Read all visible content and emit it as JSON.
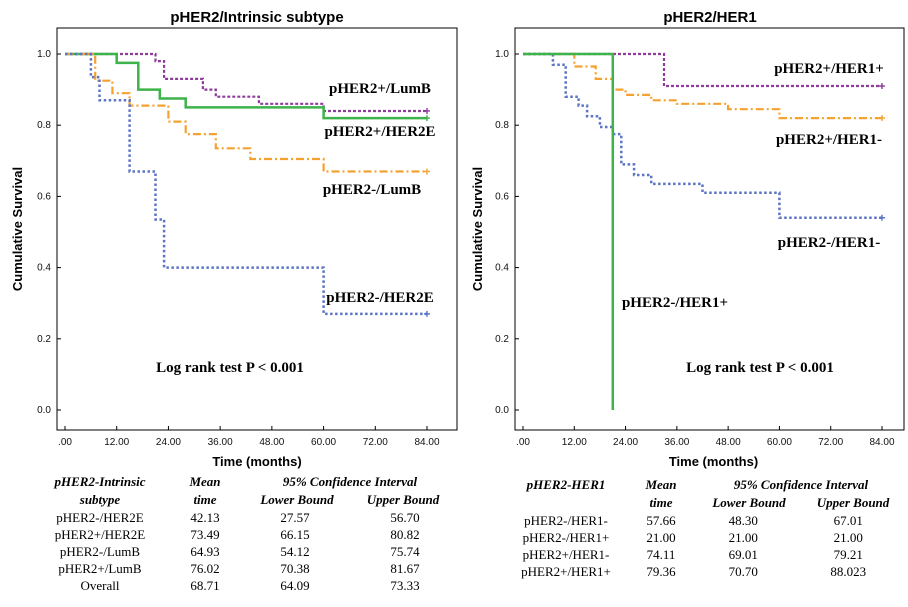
{
  "chart_data": [
    {
      "type": "line",
      "title": "pHER2/Intrinsic subtype",
      "xlabel": "Time (months)",
      "ylabel": "Cumulative Survival",
      "xlim": [
        0,
        84
      ],
      "ylim": [
        0,
        1
      ],
      "x_ticks": [
        ".00",
        "12.00",
        "24.00",
        "36.00",
        "48.00",
        "60.00",
        "72.00",
        "84.00"
      ],
      "y_ticks": [
        "0.0",
        "0.2",
        "0.4",
        "0.6",
        "0.8",
        "1.0"
      ],
      "annotation": "Log rank test  P < 0.001",
      "series": [
        {
          "name": "pHER2+/LumB",
          "color": "#8e3b9c",
          "dash": "3,2",
          "width": 2.2,
          "points": [
            [
              0,
              1
            ],
            [
              21,
              1
            ],
            [
              21,
              0.98
            ],
            [
              23,
              0.98
            ],
            [
              23,
              0.93
            ],
            [
              32,
              0.93
            ],
            [
              32,
              0.9
            ],
            [
              35,
              0.9
            ],
            [
              35,
              0.88
            ],
            [
              45,
              0.88
            ],
            [
              45,
              0.86
            ],
            [
              60,
              0.86
            ],
            [
              60,
              0.84
            ],
            [
              84,
              0.84
            ]
          ]
        },
        {
          "name": "pHER2+/HER2E",
          "color": "#3db34a",
          "dash": "",
          "width": 2.5,
          "points": [
            [
              0,
              1
            ],
            [
              12,
              1
            ],
            [
              12,
              0.975
            ],
            [
              17,
              0.975
            ],
            [
              17,
              0.9
            ],
            [
              22,
              0.9
            ],
            [
              22,
              0.875
            ],
            [
              28,
              0.875
            ],
            [
              28,
              0.85
            ],
            [
              60,
              0.85
            ],
            [
              60,
              0.82
            ],
            [
              84,
              0.82
            ]
          ]
        },
        {
          "name": "pHER2-/LumB",
          "color": "#f5a12f",
          "dash": "8,3,2,3",
          "width": 2.2,
          "points": [
            [
              0,
              1
            ],
            [
              7,
              1
            ],
            [
              7,
              0.925
            ],
            [
              11,
              0.925
            ],
            [
              11,
              0.89
            ],
            [
              15,
              0.89
            ],
            [
              15,
              0.855
            ],
            [
              24,
              0.855
            ],
            [
              24,
              0.81
            ],
            [
              28,
              0.81
            ],
            [
              28,
              0.775
            ],
            [
              35,
              0.775
            ],
            [
              35,
              0.735
            ],
            [
              43,
              0.735
            ],
            [
              43,
              0.705
            ],
            [
              60,
              0.705
            ],
            [
              60,
              0.67
            ],
            [
              84,
              0.67
            ]
          ]
        },
        {
          "name": "pHER2-/HER2E",
          "color": "#5b74c5",
          "dash": "2.5,2.5",
          "width": 2.5,
          "points": [
            [
              0,
              1
            ],
            [
              6,
              1
            ],
            [
              6,
              0.935
            ],
            [
              8,
              0.935
            ],
            [
              8,
              0.87
            ],
            [
              15,
              0.87
            ],
            [
              15,
              0.67
            ],
            [
              21,
              0.67
            ],
            [
              21,
              0.535
            ],
            [
              23,
              0.535
            ],
            [
              23,
              0.4
            ],
            [
              60,
              0.4
            ],
            [
              60,
              0.27
            ],
            [
              84,
              0.27
            ]
          ]
        }
      ],
      "series_labels": [
        "pHER2+/LumB",
        "pHER2+/HER2E",
        "pHER2-/LumB",
        "pHER2-/HER2E"
      ],
      "table": {
        "headers": [
          "pHER2-Intrinsic subtype",
          "Mean time",
          "95% Confidence Interval",
          "Lower Bound",
          "Upper Bound"
        ],
        "rows": [
          [
            "pHER2-/HER2E",
            "42.13",
            "27.57",
            "56.70"
          ],
          [
            "pHER2+/HER2E",
            "73.49",
            "66.15",
            "80.82"
          ],
          [
            "pHER2-/LumB",
            "64.93",
            "54.12",
            "75.74"
          ],
          [
            "pHER2+/LumB",
            "76.02",
            "70.38",
            "81.67"
          ],
          [
            "Overall",
            "68.71",
            "64.09",
            "73.33"
          ]
        ]
      }
    },
    {
      "type": "line",
      "title": "pHER2/HER1",
      "xlabel": "Time (months)",
      "ylabel": "Cumulative Survival",
      "xlim": [
        0,
        84
      ],
      "ylim": [
        0,
        1
      ],
      "x_ticks": [
        ".00",
        "12.00",
        "24.00",
        "36.00",
        "48.00",
        "60.00",
        "72.00",
        "84.00"
      ],
      "y_ticks": [
        "0.0",
        "0.2",
        "0.4",
        "0.6",
        "0.8",
        "1.0"
      ],
      "annotation": "Log rank test  P < 0.001",
      "series": [
        {
          "name": "pHER2+/HER1+",
          "color": "#8e3b9c",
          "dash": "3,2",
          "width": 2.2,
          "points": [
            [
              0,
              1
            ],
            [
              33,
              1
            ],
            [
              33,
              0.91
            ],
            [
              84,
              0.91
            ]
          ]
        },
        {
          "name": "pHER2+/HER1-",
          "color": "#f5a12f",
          "dash": "8,3,2,3",
          "width": 2.2,
          "points": [
            [
              0,
              1
            ],
            [
              12,
              1
            ],
            [
              12,
              0.965
            ],
            [
              17,
              0.965
            ],
            [
              17,
              0.93
            ],
            [
              21,
              0.93
            ],
            [
              21,
              0.9
            ],
            [
              24,
              0.9
            ],
            [
              24,
              0.885
            ],
            [
              30,
              0.885
            ],
            [
              30,
              0.87
            ],
            [
              36,
              0.87
            ],
            [
              36,
              0.86
            ],
            [
              48,
              0.86
            ],
            [
              48,
              0.845
            ],
            [
              60,
              0.845
            ],
            [
              60,
              0.82
            ],
            [
              84,
              0.82
            ]
          ]
        },
        {
          "name": "pHER2-/HER1-",
          "color": "#5b74c5",
          "dash": "2.5,2.5",
          "width": 2.5,
          "points": [
            [
              0,
              1
            ],
            [
              7,
              1
            ],
            [
              7,
              0.97
            ],
            [
              10,
              0.97
            ],
            [
              10,
              0.88
            ],
            [
              13,
              0.88
            ],
            [
              13,
              0.855
            ],
            [
              15,
              0.855
            ],
            [
              15,
              0.825
            ],
            [
              18,
              0.825
            ],
            [
              18,
              0.795
            ],
            [
              21,
              0.795
            ],
            [
              21,
              0.775
            ],
            [
              23,
              0.775
            ],
            [
              23,
              0.69
            ],
            [
              26,
              0.69
            ],
            [
              26,
              0.66
            ],
            [
              30,
              0.66
            ],
            [
              30,
              0.635
            ],
            [
              42,
              0.635
            ],
            [
              42,
              0.61
            ],
            [
              60,
              0.61
            ],
            [
              60,
              0.54
            ],
            [
              84,
              0.54
            ]
          ]
        },
        {
          "name": "pHER2-/HER1+",
          "color": "#3db34a",
          "dash": "",
          "width": 2.5,
          "points": [
            [
              0,
              1
            ],
            [
              21,
              1
            ],
            [
              21,
              0
            ]
          ]
        }
      ],
      "series_labels": [
        "pHER2+/HER1+",
        "pHER2+/HER1-",
        "pHER2-/HER1-",
        "pHER2-/HER1+"
      ],
      "table": {
        "headers": [
          "pHER2-HER1",
          "Mean time",
          "95% Confidence Interval",
          "Lower Bound",
          "Upper Bound"
        ],
        "rows": [
          [
            "pHER2-/HER1-",
            "57.66",
            "48.30",
            "67.01"
          ],
          [
            "pHER2-/HER1+",
            "21.00",
            "21.00",
            "21.00"
          ],
          [
            "pHER2+/HER1-",
            "74.11",
            "69.01",
            "79.21"
          ],
          [
            "pHER2+/HER1+",
            "79.36",
            "70.70",
            "88.023"
          ]
        ]
      }
    }
  ],
  "table_header_parts": {
    "left_title_1": "pHER2-Intrinsic",
    "left_title_2": "subtype",
    "mean_1": "Mean",
    "mean_2": "time",
    "ci": "95% Confidence Interval",
    "lower": "Lower Bound",
    "upper": "Upper Bound",
    "right_title": "pHER2-HER1"
  }
}
